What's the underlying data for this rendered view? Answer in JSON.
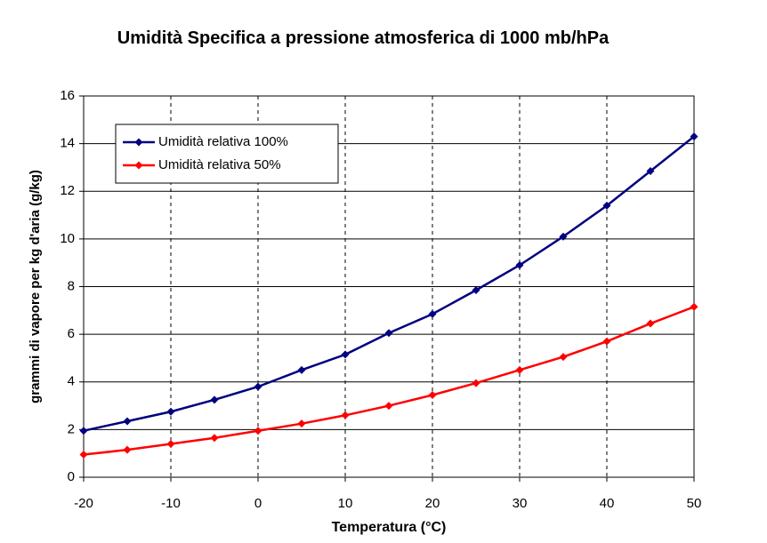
{
  "chart_data": {
    "type": "line",
    "title": "Umidità Specifica a pressione atmosferica di 1000 mb/hPa",
    "xlabel": "Temperatura (°C)",
    "ylabel": "grammi di vapore per kg d'aria (g/kg)",
    "x": [
      -20,
      -15,
      -10,
      -5,
      0,
      5,
      10,
      15,
      20,
      25,
      30,
      35,
      40,
      45,
      50
    ],
    "series": [
      {
        "name": "Umidità relativa 100%",
        "color": "#000080",
        "values": [
          1.95,
          2.35,
          2.75,
          3.25,
          3.8,
          4.5,
          5.15,
          6.05,
          6.85,
          7.85,
          8.9,
          10.1,
          11.4,
          12.85,
          14.3
        ]
      },
      {
        "name": "Umidità relativa 50%",
        "color": "#ff0000",
        "values": [
          0.95,
          1.15,
          1.4,
          1.65,
          1.95,
          2.25,
          2.6,
          3.0,
          3.45,
          3.95,
          4.5,
          5.05,
          5.7,
          6.45,
          7.15
        ]
      }
    ],
    "xlim": [
      -20,
      50
    ],
    "xticks": [
      -20,
      -10,
      0,
      10,
      20,
      30,
      40,
      50
    ],
    "ylim": [
      0,
      16
    ],
    "yticks": [
      0,
      2,
      4,
      6,
      8,
      10,
      12,
      14,
      16
    ],
    "grid": true,
    "legend": "upper left"
  }
}
